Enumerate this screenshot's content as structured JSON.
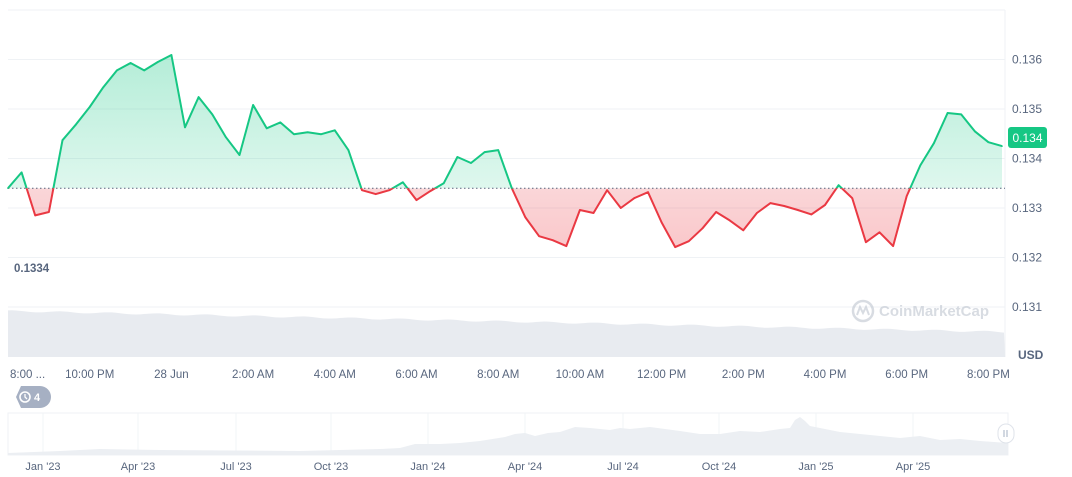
{
  "chart_data": {
    "type": "area",
    "currency_label": "USD",
    "current_price_label": "0.134",
    "baseline_label": "0.1334",
    "baseline": 0.1334,
    "ylim": [
      0.13099,
      0.137
    ],
    "y_ticks": [
      "0.131",
      "0.132",
      "0.133",
      "0.134",
      "0.135",
      "0.136"
    ],
    "x_tick_labels": [
      "8:00 ...",
      "10:00 PM",
      "28 Jun",
      "2:00 AM",
      "4:00 AM",
      "6:00 AM",
      "8:00 AM",
      "10:00 AM",
      "12:00 PM",
      "2:00 PM",
      "4:00 PM",
      "6:00 PM",
      "8:00 PM"
    ],
    "grid": true,
    "colors": {
      "up": "#16c784",
      "down": "#ea3943",
      "badge": "#16c784"
    },
    "x": [
      "27 Jun 20:00",
      "27 Jun 20:20",
      "27 Jun 20:40",
      "27 Jun 21:00",
      "27 Jun 21:20",
      "27 Jun 21:40",
      "27 Jun 22:00",
      "27 Jun 22:20",
      "27 Jun 22:40",
      "27 Jun 23:00",
      "27 Jun 23:20",
      "27 Jun 23:40",
      "28 Jun 00:00",
      "28 Jun 00:20",
      "28 Jun 00:40",
      "28 Jun 01:00",
      "28 Jun 01:20",
      "28 Jun 01:40",
      "28 Jun 02:00",
      "28 Jun 02:20",
      "28 Jun 02:40",
      "28 Jun 03:00",
      "28 Jun 03:20",
      "28 Jun 03:40",
      "28 Jun 04:00",
      "28 Jun 04:20",
      "28 Jun 04:40",
      "28 Jun 05:00",
      "28 Jun 05:20",
      "28 Jun 05:40",
      "28 Jun 06:00",
      "28 Jun 06:20",
      "28 Jun 06:40",
      "28 Jun 07:00",
      "28 Jun 07:20",
      "28 Jun 07:40",
      "28 Jun 08:00",
      "28 Jun 08:20",
      "28 Jun 08:40",
      "28 Jun 09:00",
      "28 Jun 09:20",
      "28 Jun 09:40",
      "28 Jun 10:00",
      "28 Jun 10:20",
      "28 Jun 10:40",
      "28 Jun 11:00",
      "28 Jun 11:20",
      "28 Jun 11:40",
      "28 Jun 12:00",
      "28 Jun 12:20",
      "28 Jun 12:40",
      "28 Jun 13:00",
      "28 Jun 13:20",
      "28 Jun 13:40",
      "28 Jun 14:00",
      "28 Jun 14:20",
      "28 Jun 14:40",
      "28 Jun 15:00",
      "28 Jun 15:20",
      "28 Jun 15:40",
      "28 Jun 16:00",
      "28 Jun 16:20",
      "28 Jun 16:40",
      "28 Jun 17:00",
      "28 Jun 17:20",
      "28 Jun 17:40",
      "28 Jun 18:00",
      "28 Jun 18:20",
      "28 Jun 18:40",
      "28 Jun 19:00",
      "28 Jun 19:20",
      "28 Jun 19:40",
      "28 Jun 20:00",
      "28 Jun 20:20"
    ],
    "values": [
      0.1334,
      0.13372,
      0.13285,
      0.13292,
      0.13437,
      0.13469,
      0.13504,
      0.13544,
      0.13578,
      0.13593,
      0.13578,
      0.13595,
      0.13609,
      0.13463,
      0.13524,
      0.13489,
      0.13443,
      0.13407,
      0.13508,
      0.13461,
      0.13473,
      0.13449,
      0.13453,
      0.13449,
      0.13457,
      0.13417,
      0.13336,
      0.13328,
      0.13336,
      0.13352,
      0.13316,
      0.13334,
      0.1335,
      0.13403,
      0.13391,
      0.13413,
      0.13417,
      0.1334,
      0.13281,
      0.13243,
      0.13235,
      0.13223,
      0.13296,
      0.1329,
      0.13336,
      0.133,
      0.1332,
      0.13332,
      0.13271,
      0.13221,
      0.13233,
      0.13259,
      0.13292,
      0.13275,
      0.13255,
      0.1329,
      0.1331,
      0.13304,
      0.13296,
      0.13287,
      0.13306,
      0.13346,
      0.1332,
      0.13231,
      0.13251,
      0.13223,
      0.13324,
      0.13386,
      0.13431,
      0.13492,
      0.13489,
      0.13455,
      0.13433,
      0.13425
    ]
  },
  "watermark": "CoinMarketCap",
  "history_badge": {
    "icon": "history-icon",
    "count": "4"
  },
  "navigator": {
    "labels": [
      "Jan '23",
      "Apr '23",
      "Jul '23",
      "Oct '23",
      "Jan '24",
      "Apr '24",
      "Jul '24",
      "Oct '24",
      "Jan '25",
      "Apr '25"
    ]
  }
}
